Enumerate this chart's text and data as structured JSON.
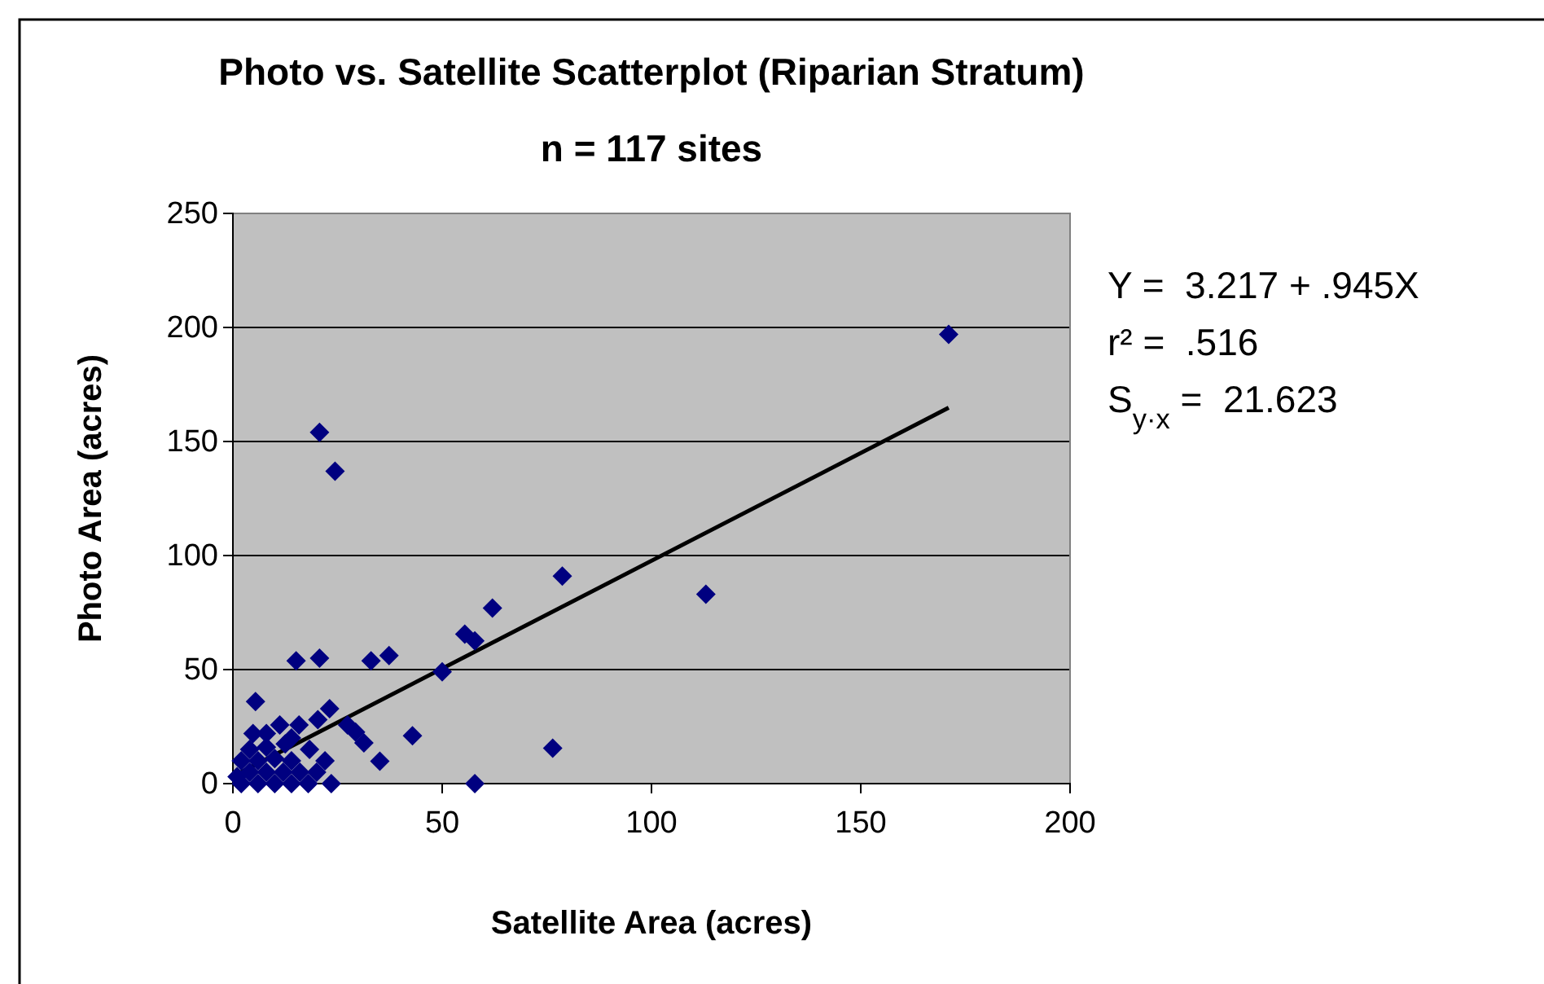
{
  "chart_data": {
    "type": "scatter",
    "title": "Photo vs. Satellite Scatterplot (Riparian Stratum)",
    "subtitle": "n = 117 sites",
    "xlabel": "Satellite Area (acres)",
    "ylabel": "Photo Area (acres)",
    "annotations": [
      "Y =  3.217 + .945X",
      "r² =  .516",
      "S$_{y·x}$ =  21.623"
    ],
    "xlim": [
      0,
      200
    ],
    "xticks": [
      0,
      50,
      100,
      150,
      200
    ],
    "ylim": [
      0,
      250
    ],
    "yticks": [
      0,
      50,
      100,
      150,
      200,
      250
    ],
    "grid": "y",
    "marker": "diamond",
    "series": [
      {
        "type": "line",
        "color": "#000000",
        "x": [
          2,
          171
        ],
        "values": [
          5.1,
          164.8
        ],
        "marker": "none",
        "line_style": "solid"
      },
      {
        "type": "scatter",
        "color": "#000080",
        "x": [
          171,
          20.7,
          24.4,
          78.7,
          113,
          62,
          55.4,
          57.8,
          15.1,
          20.7,
          33,
          37.3,
          50,
          5.4,
          42.9,
          76.4,
          35.1,
          57.8,
          23.5,
          29.3,
          31.3,
          23.1,
          27.4,
          11.2,
          15.8,
          4.8,
          20.3,
          12.5,
          18.3,
          2,
          6,
          10,
          14,
          18,
          4,
          8,
          12,
          16,
          20,
          2,
          6,
          10,
          14,
          22,
          4,
          8,
          14,
          8,
          1
        ],
        "values": [
          197,
          154,
          137,
          91,
          83,
          77,
          65.5,
          62.6,
          53.8,
          55,
          53.8,
          56.2,
          49,
          36,
          21,
          15.5,
          9.8,
          0,
          0,
          22.6,
          17.9,
          32.9,
          25.7,
          25.7,
          25.7,
          22,
          28,
          17.4,
          15,
          0,
          0,
          0,
          0,
          0,
          5,
          5,
          5,
          5,
          5,
          10,
          10,
          11,
          10,
          10,
          15,
          16,
          20,
          22,
          3
        ]
      }
    ]
  }
}
